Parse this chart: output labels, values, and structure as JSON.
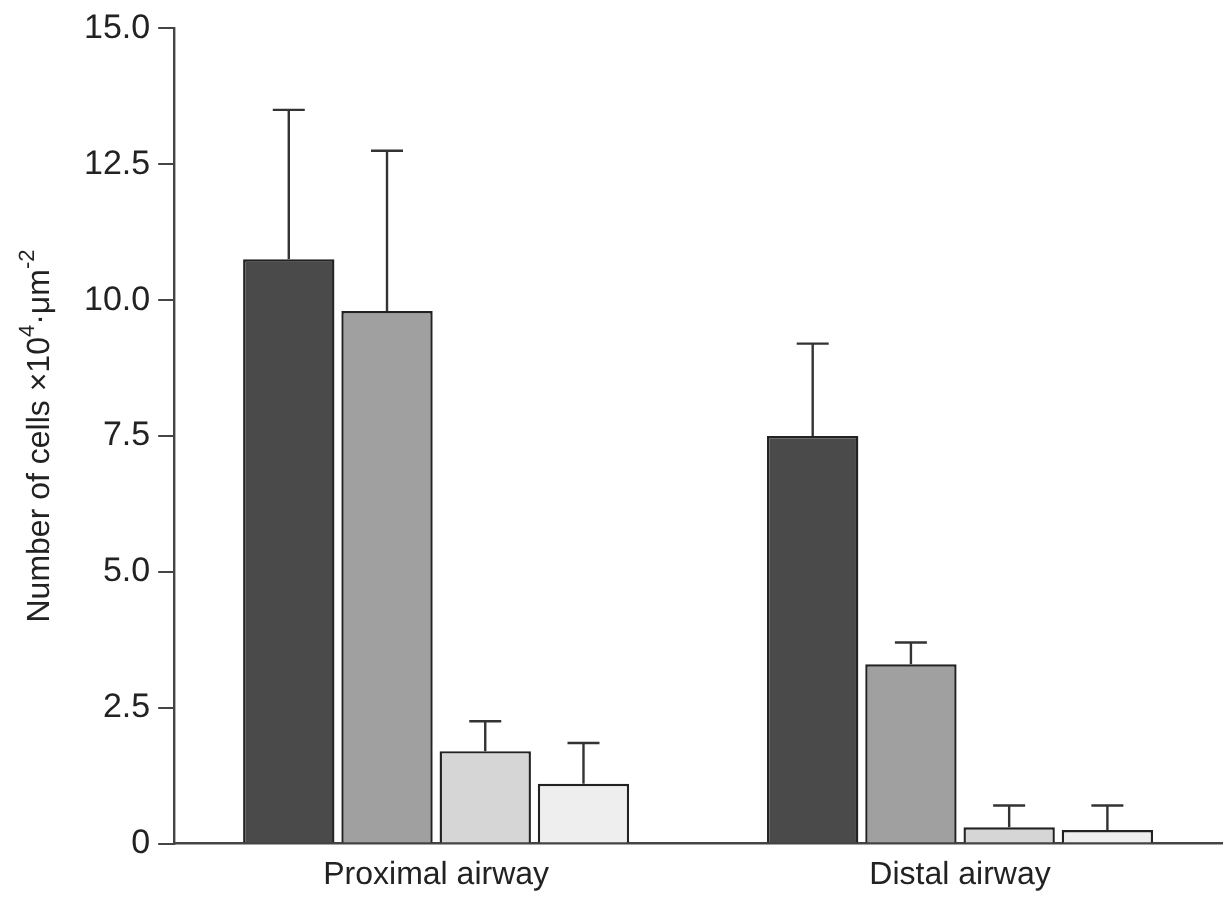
{
  "chart_data": {
    "type": "bar",
    "ylabel": "Number of cells ×10$^{4}$·μm$^{-2}$",
    "categories": [
      "Proximal airway",
      "Distal airway"
    ],
    "series": [
      {
        "color": "#4a4a4a",
        "values": [
          10.75,
          7.5
        ],
        "errors": [
          [
            10.75,
            13.5
          ],
          [
            7.5,
            9.2
          ]
        ]
      },
      {
        "color": "#a0a0a0",
        "values": [
          9.8,
          3.3
        ],
        "errors": [
          [
            9.8,
            12.75
          ],
          [
            3.3,
            3.7
          ]
        ]
      },
      {
        "color": "#d6d6d6",
        "values": [
          1.7,
          0.3
        ],
        "errors": [
          [
            1.7,
            2.25
          ],
          [
            0.3,
            0.7
          ]
        ]
      },
      {
        "color": "#eeeeee",
        "values": [
          1.1,
          0.25
        ],
        "errors": [
          [
            1.1,
            1.85
          ],
          [
            0.25,
            0.7
          ]
        ]
      }
    ],
    "ylim": [
      0,
      15
    ],
    "yticks": [
      0,
      {
        "value": 2.5,
        "label": "2.5"
      },
      {
        "value": 5,
        "label": "5.0"
      },
      {
        "value": 7.5,
        "label": "7.5"
      },
      {
        "value": 10,
        "label": "10.0"
      },
      {
        "value": 12.5,
        "label": "12.5"
      },
      {
        "value": 15,
        "label": "15.0"
      }
    ],
    "grid": false,
    "legend": false
  }
}
